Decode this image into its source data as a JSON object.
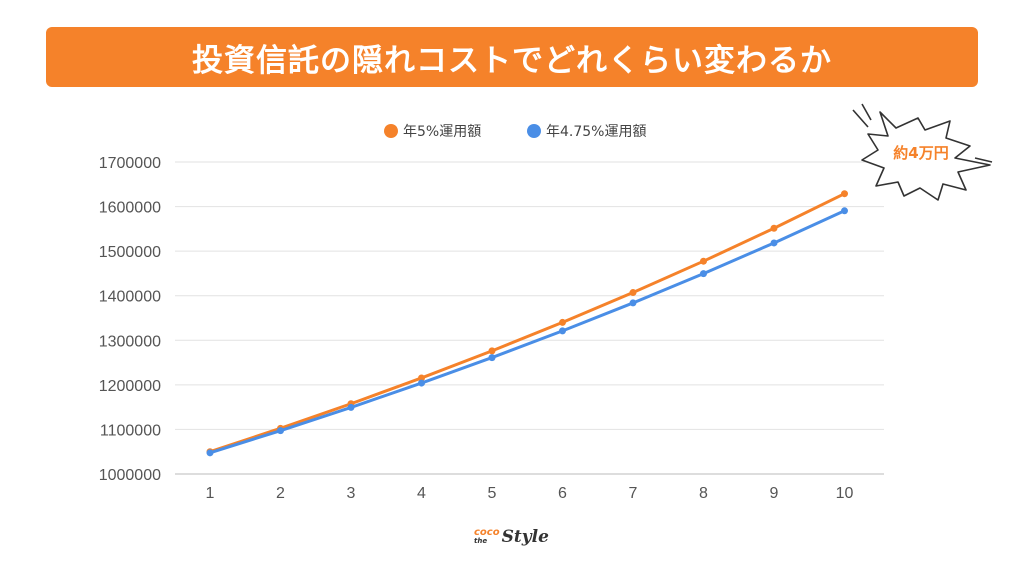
{
  "header": {
    "title": "投資信託の隠れコストでどれくらい変わるか"
  },
  "callout": {
    "text": "約4万円"
  },
  "logo": {
    "top": "coco",
    "middle": "the",
    "main": "Style"
  },
  "chart_data": {
    "type": "line",
    "x": [
      "1",
      "2",
      "3",
      "4",
      "5",
      "6",
      "7",
      "8",
      "9",
      "10"
    ],
    "ylim": [
      1000000,
      1700000
    ],
    "yticks": [
      1000000,
      1100000,
      1200000,
      1300000,
      1400000,
      1500000,
      1600000,
      1700000
    ],
    "grid": true,
    "legend_position": "top",
    "series": [
      {
        "name": "年5%運用額",
        "color": "#f5822a",
        "values": [
          1050000,
          1102500,
          1157625,
          1215506,
          1276282,
          1340096,
          1407100,
          1477455,
          1551328,
          1628895
        ]
      },
      {
        "name": "年4.75%運用額",
        "color": "#4a8ee6",
        "values": [
          1047500,
          1097256,
          1149376,
          1203971,
          1261160,
          1321065,
          1383815,
          1449546,
          1518400,
          1590524
        ]
      }
    ]
  }
}
